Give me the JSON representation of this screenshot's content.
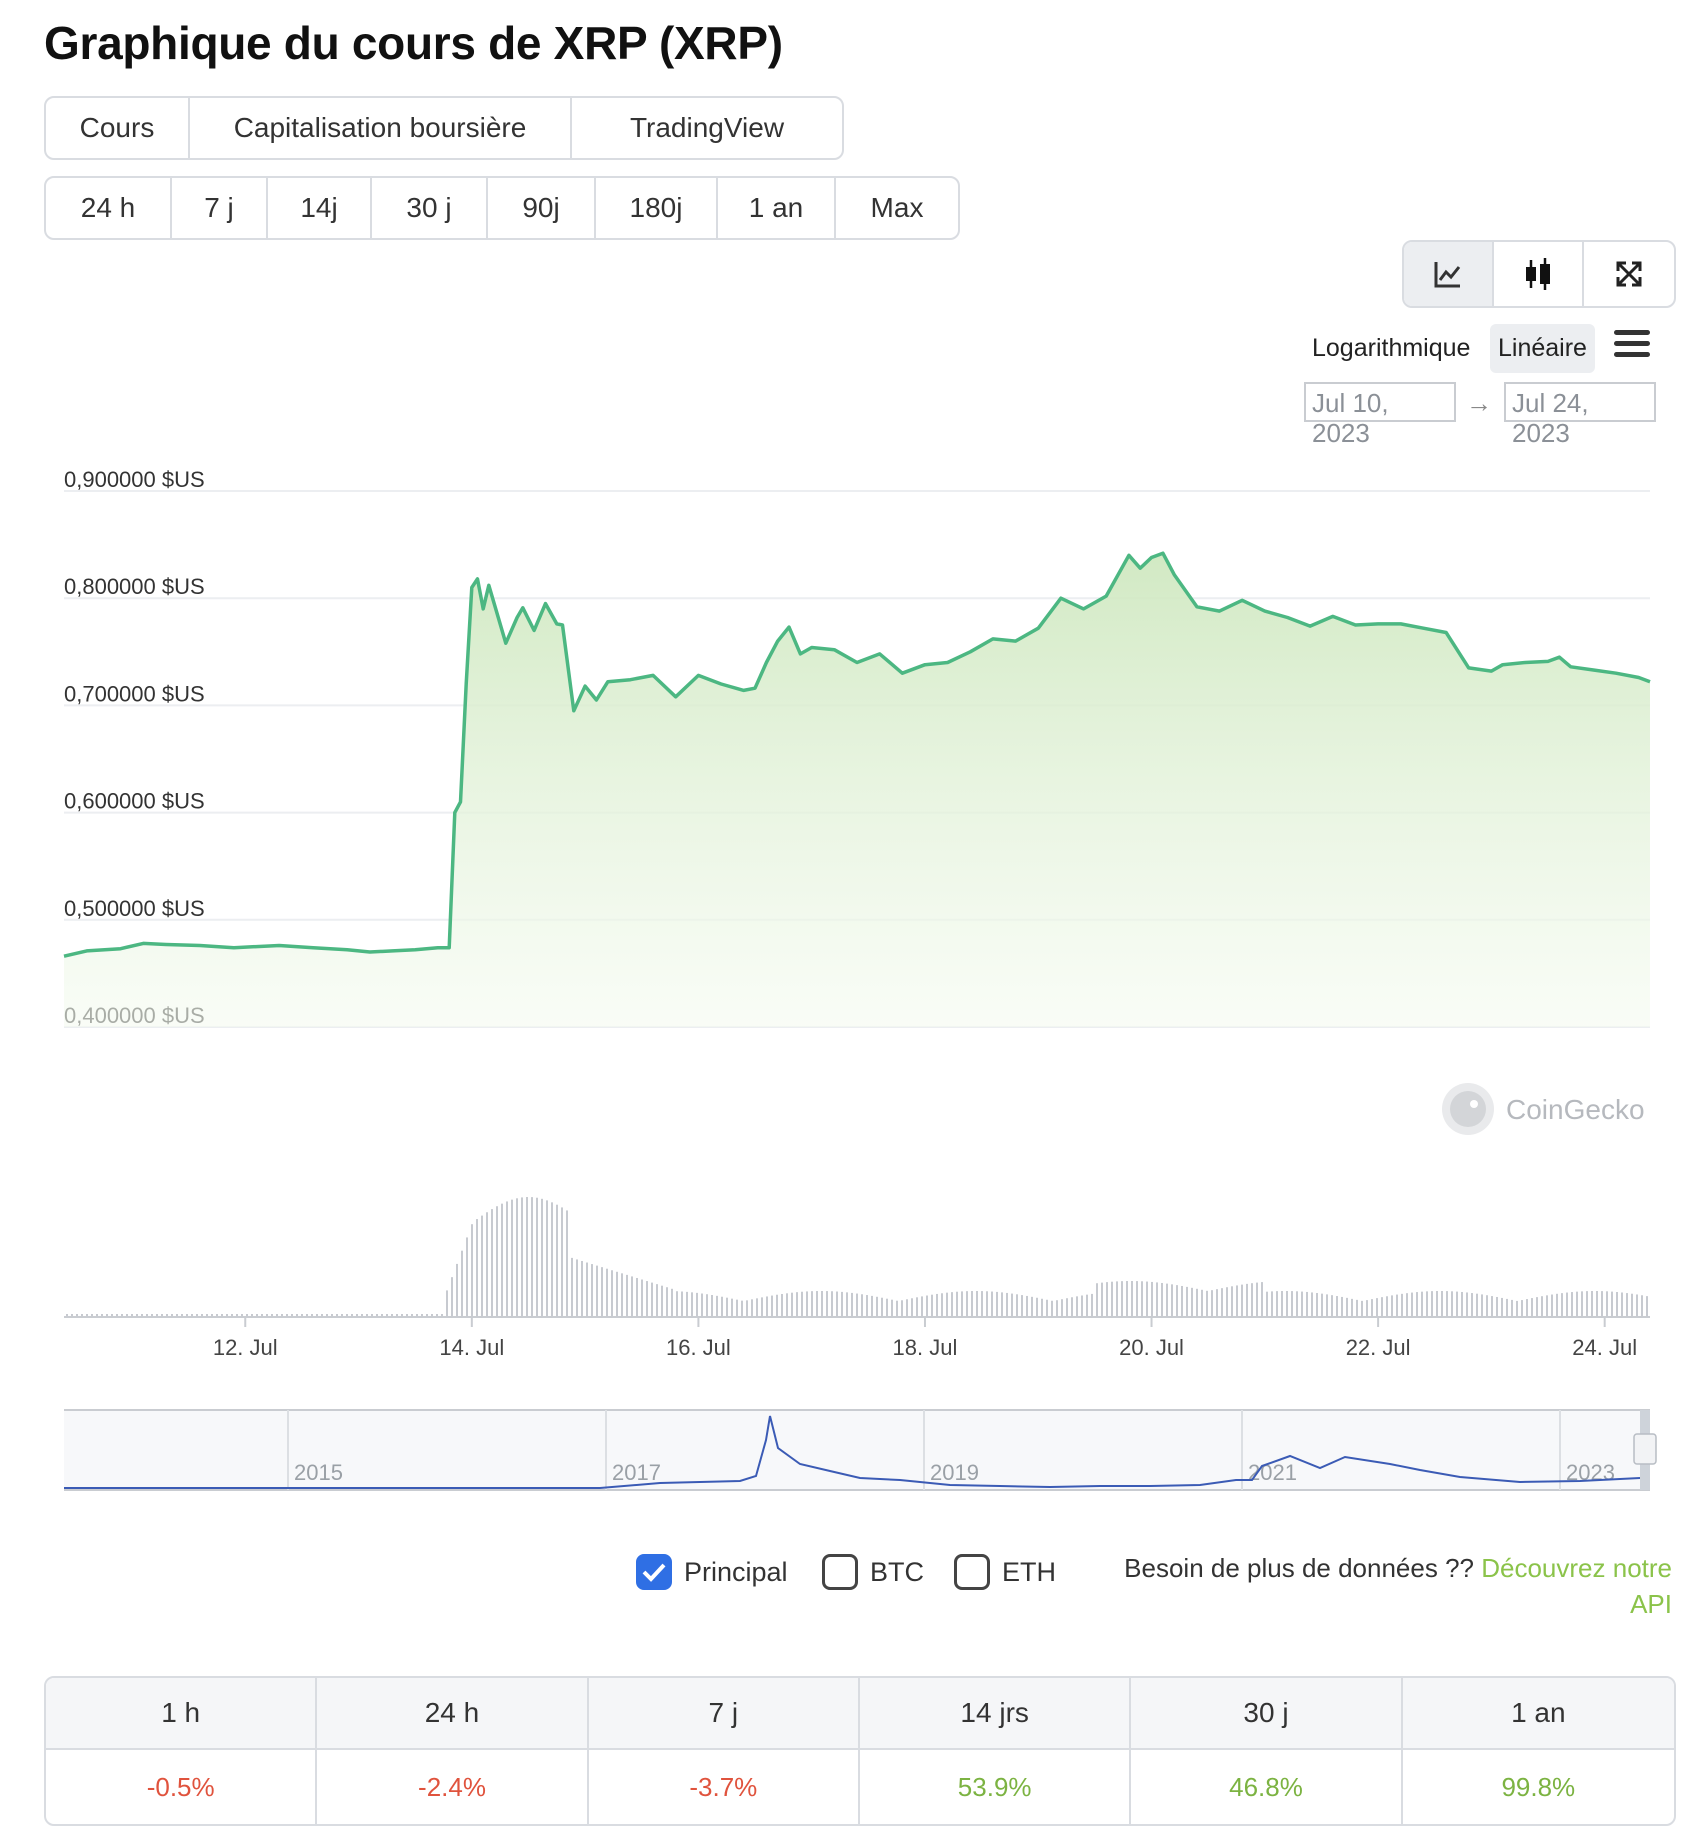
{
  "title": "Graphique du cours de XRP (XRP)",
  "main_tabs": [
    {
      "label": "Cours",
      "active": true
    },
    {
      "label": "Capitalisation boursière",
      "active": false
    },
    {
      "label": "TradingView",
      "active": false
    }
  ],
  "range_tabs": [
    {
      "label": "24 h",
      "active": false
    },
    {
      "label": "7 j",
      "active": false
    },
    {
      "label": "14j",
      "active": true
    },
    {
      "label": "30 j",
      "active": false
    },
    {
      "label": "90j",
      "active": false
    },
    {
      "label": "180j",
      "active": false
    },
    {
      "label": "1 an",
      "active": false
    },
    {
      "label": "Max",
      "active": false
    }
  ],
  "view_tools": [
    "line-chart-icon",
    "candlestick-icon",
    "fullscreen-icon"
  ],
  "scale": {
    "log_label": "Logarithmique",
    "linear_label": "Linéaire",
    "active": "linear"
  },
  "date_range": {
    "from": "Jul 10, 2023",
    "to": "Jul 24, 2023"
  },
  "watermark": "CoinGecko",
  "chart_data": {
    "type": "area",
    "y_ticks": [
      "0,900000 $US",
      "0,800000 $US",
      "0,700000 $US",
      "0,600000 $US",
      "0,500000 $US",
      "0,400000 $US"
    ],
    "ylim": [
      0.4,
      0.9
    ],
    "x_ticks": [
      "12. Jul",
      "14. Jul",
      "16. Jul",
      "18. Jul",
      "20. Jul",
      "22. Jul",
      "24. Jul"
    ],
    "x_tick_days": [
      12,
      14,
      16,
      18,
      20,
      22,
      24
    ],
    "xlim_days": [
      10.4,
      24.4
    ],
    "line_color": "#4cb782",
    "price_series": [
      [
        10.4,
        0.466
      ],
      [
        10.6,
        0.471
      ],
      [
        10.9,
        0.473
      ],
      [
        11.1,
        0.478
      ],
      [
        11.3,
        0.477
      ],
      [
        11.6,
        0.476
      ],
      [
        11.9,
        0.474
      ],
      [
        12.1,
        0.475
      ],
      [
        12.3,
        0.476
      ],
      [
        12.6,
        0.474
      ],
      [
        12.9,
        0.472
      ],
      [
        13.1,
        0.47
      ],
      [
        13.3,
        0.471
      ],
      [
        13.5,
        0.472
      ],
      [
        13.7,
        0.474
      ],
      [
        13.8,
        0.474
      ],
      [
        13.85,
        0.6
      ],
      [
        13.9,
        0.61
      ],
      [
        13.95,
        0.72
      ],
      [
        14.0,
        0.81
      ],
      [
        14.05,
        0.818
      ],
      [
        14.1,
        0.79
      ],
      [
        14.15,
        0.812
      ],
      [
        14.3,
        0.758
      ],
      [
        14.4,
        0.782
      ],
      [
        14.45,
        0.791
      ],
      [
        14.55,
        0.77
      ],
      [
        14.65,
        0.795
      ],
      [
        14.75,
        0.776
      ],
      [
        14.8,
        0.775
      ],
      [
        14.9,
        0.695
      ],
      [
        15.0,
        0.718
      ],
      [
        15.1,
        0.705
      ],
      [
        15.2,
        0.722
      ],
      [
        15.4,
        0.724
      ],
      [
        15.6,
        0.728
      ],
      [
        15.8,
        0.708
      ],
      [
        16.0,
        0.728
      ],
      [
        16.2,
        0.72
      ],
      [
        16.4,
        0.714
      ],
      [
        16.5,
        0.716
      ],
      [
        16.6,
        0.74
      ],
      [
        16.7,
        0.76
      ],
      [
        16.8,
        0.773
      ],
      [
        16.9,
        0.748
      ],
      [
        17.0,
        0.754
      ],
      [
        17.2,
        0.752
      ],
      [
        17.4,
        0.74
      ],
      [
        17.6,
        0.748
      ],
      [
        17.8,
        0.73
      ],
      [
        18.0,
        0.738
      ],
      [
        18.2,
        0.74
      ],
      [
        18.4,
        0.75
      ],
      [
        18.6,
        0.762
      ],
      [
        18.8,
        0.76
      ],
      [
        19.0,
        0.772
      ],
      [
        19.2,
        0.8
      ],
      [
        19.4,
        0.79
      ],
      [
        19.6,
        0.802
      ],
      [
        19.8,
        0.84
      ],
      [
        19.9,
        0.828
      ],
      [
        20.0,
        0.838
      ],
      [
        20.1,
        0.842
      ],
      [
        20.2,
        0.822
      ],
      [
        20.4,
        0.792
      ],
      [
        20.6,
        0.788
      ],
      [
        20.8,
        0.798
      ],
      [
        21.0,
        0.788
      ],
      [
        21.2,
        0.782
      ],
      [
        21.4,
        0.774
      ],
      [
        21.6,
        0.783
      ],
      [
        21.8,
        0.775
      ],
      [
        22.0,
        0.776
      ],
      [
        22.2,
        0.776
      ],
      [
        22.4,
        0.772
      ],
      [
        22.6,
        0.768
      ],
      [
        22.8,
        0.735
      ],
      [
        23.0,
        0.732
      ],
      [
        23.1,
        0.738
      ],
      [
        23.3,
        0.74
      ],
      [
        23.5,
        0.741
      ],
      [
        23.6,
        0.745
      ],
      [
        23.7,
        0.736
      ],
      [
        23.9,
        0.733
      ],
      [
        24.1,
        0.73
      ],
      [
        24.3,
        0.726
      ],
      [
        24.4,
        0.722
      ]
    ],
    "volume_ticks_note": "",
    "navigator_year_labels": [
      "2015",
      "2017",
      "2019",
      "2021",
      "2023"
    ]
  },
  "legend": {
    "principal": {
      "label": "Principal",
      "checked": true
    },
    "btc": {
      "label": "BTC",
      "checked": false
    },
    "eth": {
      "label": "ETH",
      "checked": false
    }
  },
  "api_promo": {
    "text": "Besoin de plus de données ??",
    "link": "Découvrez notre API"
  },
  "stats": [
    {
      "period": "1 h",
      "value": "-0.5%",
      "dir": "neg"
    },
    {
      "period": "24 h",
      "value": "-2.4%",
      "dir": "neg"
    },
    {
      "period": "7 j",
      "value": "-3.7%",
      "dir": "neg"
    },
    {
      "period": "14 jrs",
      "value": "53.9%",
      "dir": "pos"
    },
    {
      "period": "30 j",
      "value": "46.8%",
      "dir": "pos"
    },
    {
      "period": "1 an",
      "value": "99.8%",
      "dir": "pos"
    }
  ]
}
